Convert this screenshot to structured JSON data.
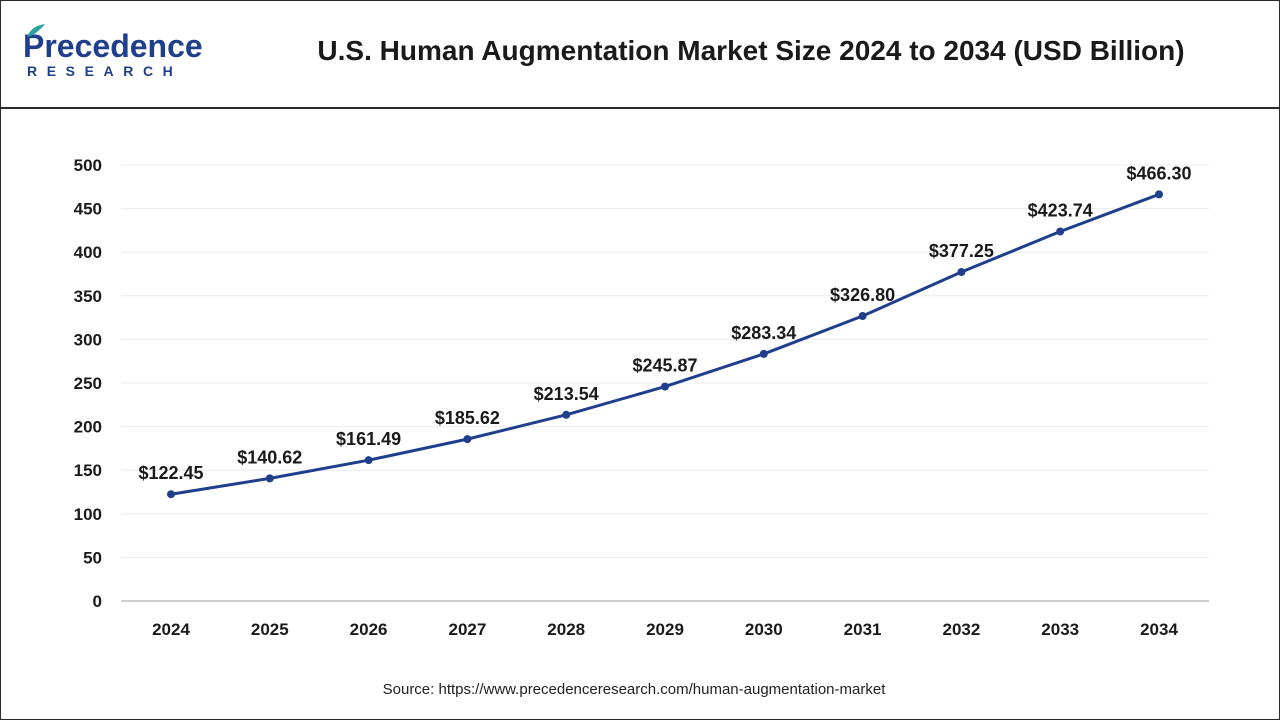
{
  "brand": {
    "name_top": "Precedence",
    "name_bottom": "RESEARCH",
    "color": "#1f3f8c"
  },
  "header": {
    "title": "U.S. Human Augmentation Market Size 2024 to 2034 (USD Billion)"
  },
  "source": "Source: https://www.precedenceresearch.com/human-augmentation-market",
  "chart_data": {
    "type": "line",
    "x": [
      "2024",
      "2025",
      "2026",
      "2027",
      "2028",
      "2029",
      "2030",
      "2031",
      "2032",
      "2033",
      "2034"
    ],
    "values": [
      122.45,
      140.62,
      161.49,
      185.62,
      213.54,
      245.87,
      283.34,
      326.8,
      377.25,
      423.74,
      466.3
    ],
    "data_labels": [
      "$122.45",
      "$140.62",
      "$161.49",
      "$185.62",
      "$213.54",
      "$245.87",
      "$283.34",
      "$326.80",
      "$377.25",
      "$423.74",
      "$466.30"
    ],
    "yticks": [
      "0",
      "50",
      "100",
      "150",
      "200",
      "250",
      "300",
      "350",
      "400",
      "450",
      "500"
    ],
    "ylim": [
      0,
      500
    ],
    "grid": true,
    "line_color": "#1f3f8c",
    "title": "",
    "xlabel": "",
    "ylabel": ""
  }
}
